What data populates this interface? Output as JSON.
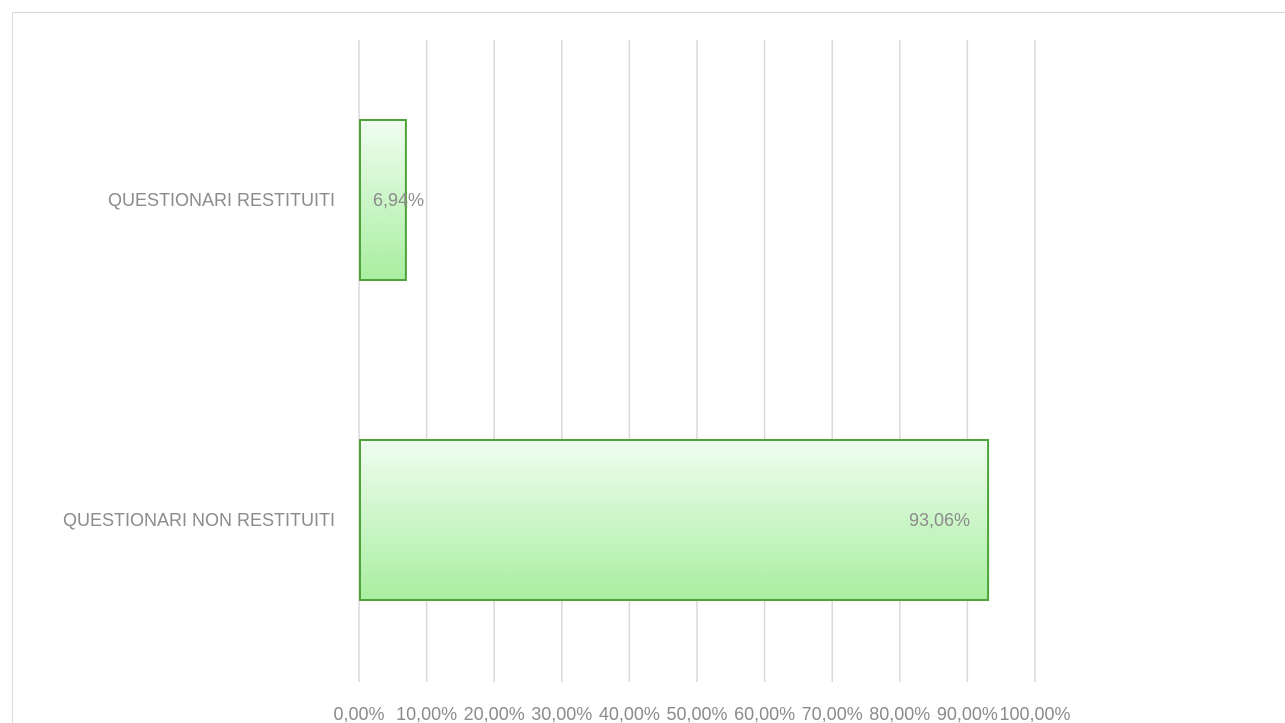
{
  "chart_data": {
    "type": "bar",
    "orientation": "horizontal",
    "categories": [
      "QUESTIONARI RESTITUITI",
      "QUESTIONARI NON RESTITUITI"
    ],
    "values": [
      6.94,
      93.06
    ],
    "data_labels": [
      "6,94%",
      "93,06%"
    ],
    "xlim": [
      0,
      100
    ],
    "x_ticks": [
      0,
      10,
      20,
      30,
      40,
      50,
      60,
      70,
      80,
      90,
      100
    ],
    "x_tick_labels": [
      "0,00%",
      "10,00%",
      "20,00%",
      "30,00%",
      "40,00%",
      "50,00%",
      "60,00%",
      "70,00%",
      "80,00%",
      "90,00%",
      "100,00%"
    ],
    "grid": "vertical",
    "legend": "none",
    "colors": {
      "bar_fill_top": "#f0fdf0",
      "bar_fill_bottom": "#a8eea0",
      "bar_border": "#4ea33a",
      "grid": "#d9d9d9",
      "text": "#8c8c8c"
    }
  }
}
